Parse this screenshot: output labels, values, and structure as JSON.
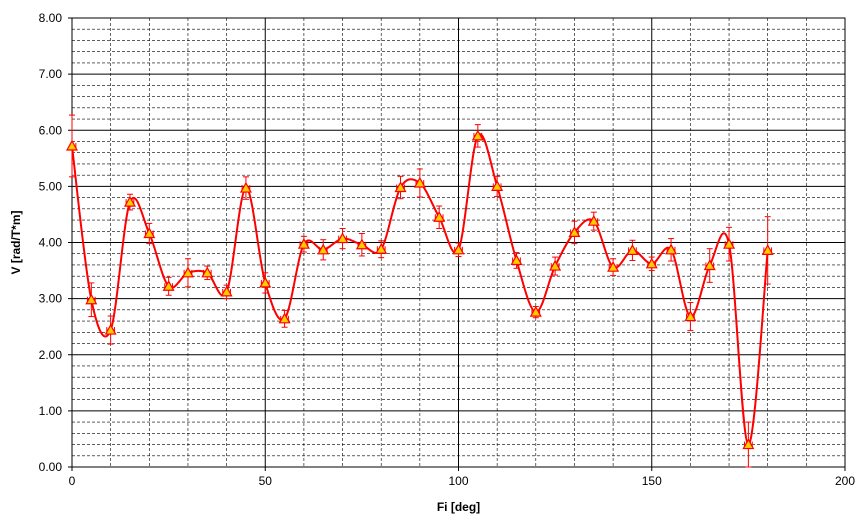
{
  "chart_data": {
    "type": "line",
    "xlabel": "Fi [deg]",
    "ylabel": "V [rad/T*m]",
    "xlim": [
      0,
      200
    ],
    "ylim": [
      0,
      8
    ],
    "x_ticks": [
      "0",
      "50",
      "100",
      "150",
      "200"
    ],
    "y_ticks": [
      "0.00",
      "1.00",
      "2.00",
      "3.00",
      "4.00",
      "5.00",
      "6.00",
      "7.00",
      "8.00"
    ],
    "grid": "major solid, minor dashed",
    "line_color": "#ff0000",
    "marker_color": "#ffcc00",
    "marker": "triangle",
    "series": [
      {
        "x": [
          0,
          5,
          10,
          15,
          20,
          25,
          30,
          35,
          40,
          45,
          50,
          55,
          60,
          65,
          70,
          75,
          80,
          85,
          90,
          95,
          100,
          105,
          110,
          115,
          120,
          125,
          130,
          135,
          140,
          145,
          150,
          155,
          160,
          165,
          170,
          175,
          180
        ],
        "y": [
          5.72,
          2.98,
          2.44,
          4.72,
          4.16,
          3.22,
          3.46,
          3.46,
          3.12,
          4.97,
          3.28,
          2.64,
          3.97,
          3.87,
          4.07,
          3.96,
          3.88,
          4.98,
          5.06,
          4.45,
          3.87,
          5.9,
          5.0,
          3.68,
          2.76,
          3.58,
          4.18,
          4.38,
          3.56,
          3.86,
          3.62,
          3.87,
          2.68,
          3.59,
          3.97,
          0.4,
          3.86
        ],
        "yerr": [
          0.55,
          0.3,
          0.25,
          0.14,
          0.18,
          0.16,
          0.25,
          0.12,
          0.12,
          0.2,
          0.18,
          0.15,
          0.14,
          0.18,
          0.18,
          0.2,
          0.15,
          0.2,
          0.25,
          0.2,
          0.12,
          0.2,
          0.18,
          0.14,
          0.1,
          0.16,
          0.2,
          0.16,
          0.15,
          0.18,
          0.12,
          0.2,
          0.25,
          0.3,
          0.3,
          0.4,
          0.6
        ],
        "xerr": [
          1,
          1,
          1,
          1,
          1,
          1,
          1,
          1,
          1,
          1,
          1,
          1,
          1,
          1,
          1,
          1,
          1,
          1,
          1,
          1,
          1,
          1,
          1,
          1,
          1,
          1,
          1,
          1,
          1,
          1,
          1,
          1,
          1,
          1,
          1,
          1,
          1
        ]
      }
    ]
  }
}
